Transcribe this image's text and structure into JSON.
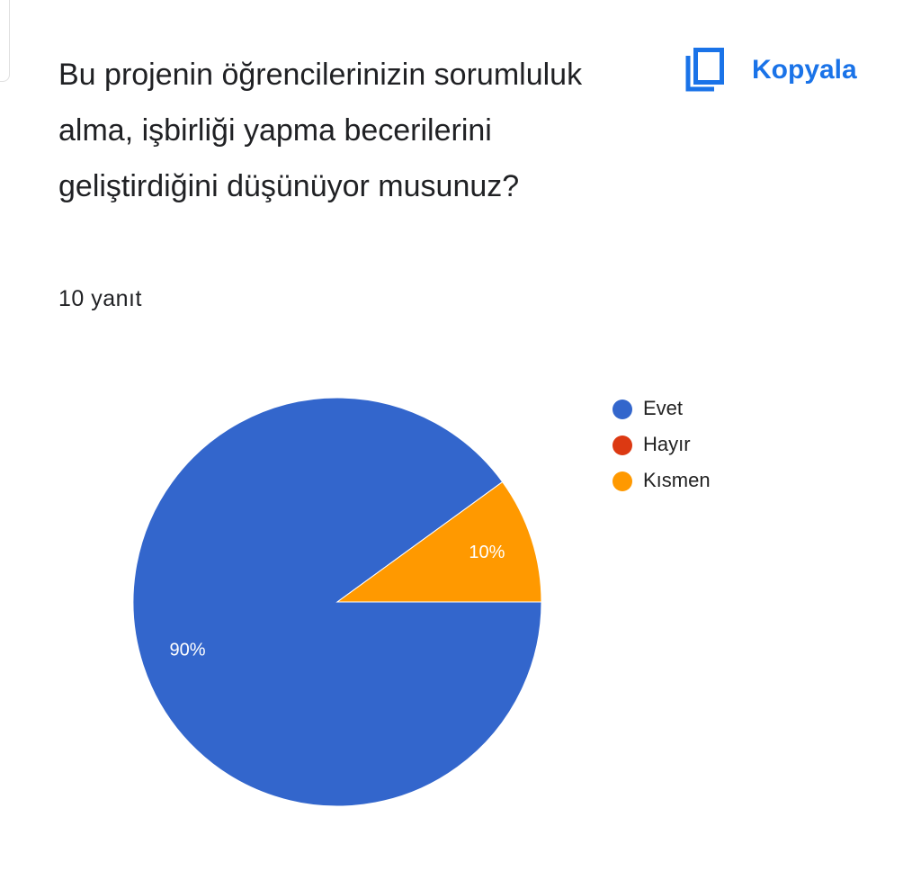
{
  "chart_data": {
    "type": "pie",
    "title": "Bu projenin öğrencilerinizin sorumluluk alma, işbirliği yapma becerilerini geliştirdiğini düşünüyor musunuz?",
    "subtitle": "10 yanıt",
    "copy_button": "Kopyala",
    "categories": [
      "Evet",
      "Hayır",
      "Kısmen"
    ],
    "values": [
      90,
      0,
      10
    ],
    "value_labels": [
      "90%",
      null,
      "10%"
    ],
    "colors": [
      "#3366cc",
      "#dc3912",
      "#ff9900"
    ],
    "legend": "right"
  }
}
